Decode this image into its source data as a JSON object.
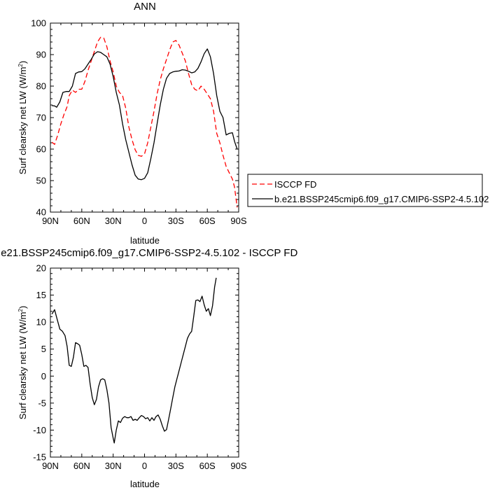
{
  "chart_data": [
    {
      "type": "line",
      "title": "ANN",
      "xlabel": "latitude",
      "ylabel": "Surf clearsky net LW (W/m",
      "ylabel_sup": "2",
      "ylabel_close": ")",
      "xlim": [
        90,
        -90
      ],
      "ylim": [
        40,
        100
      ],
      "x_ticks": [
        90,
        60,
        30,
        0,
        -30,
        -60,
        -90
      ],
      "x_tick_labels": [
        "90N",
        "60N",
        "30N",
        "0",
        "30S",
        "60S",
        "90S"
      ],
      "y_ticks": [
        40,
        50,
        60,
        70,
        80,
        90,
        100
      ],
      "y_tick_labels": [
        "40",
        "50",
        "60",
        "70",
        "80",
        "90",
        "100"
      ],
      "grid": false,
      "legend_position": "right",
      "series": [
        {
          "name": "ISCCP FD",
          "color": "#ff0000",
          "dash": "dashed",
          "points": [
            [
              88.5,
              62.2
            ],
            [
              86,
              61.5
            ],
            [
              83,
              64.5
            ],
            [
              80,
              68
            ],
            [
              77,
              71
            ],
            [
              74,
              73.5
            ],
            [
              72,
              77
            ],
            [
              69,
              78.7
            ],
            [
              66,
              78
            ],
            [
              63,
              79
            ],
            [
              60,
              79
            ],
            [
              57,
              81.5
            ],
            [
              54,
              85
            ],
            [
              51,
              88
            ],
            [
              48,
              91
            ],
            [
              45,
              94
            ],
            [
              42,
              95.5
            ],
            [
              39,
              95.3
            ],
            [
              36,
              92.5
            ],
            [
              33,
              88
            ],
            [
              30,
              84.5
            ],
            [
              27,
              80
            ],
            [
              24,
              78
            ],
            [
              21,
              77
            ],
            [
              18,
              73
            ],
            [
              15,
              67
            ],
            [
              12,
              63
            ],
            [
              9,
              59.8
            ],
            [
              6,
              58
            ],
            [
              3,
              57.7
            ],
            [
              0,
              58.5
            ],
            [
              -3,
              62
            ],
            [
              -6,
              67
            ],
            [
              -9,
              72
            ],
            [
              -12,
              77.5
            ],
            [
              -15,
              82
            ],
            [
              -18,
              85.5
            ],
            [
              -21,
              88.5
            ],
            [
              -24,
              91.5
            ],
            [
              -27,
              94
            ],
            [
              -30,
              94.5
            ],
            [
              -33,
              93
            ],
            [
              -36,
              90.5
            ],
            [
              -39,
              88
            ],
            [
              -42,
              84
            ],
            [
              -45,
              80.5
            ],
            [
              -48,
              79
            ],
            [
              -51,
              78.5
            ],
            [
              -54,
              80
            ],
            [
              -57,
              79
            ],
            [
              -60,
              77.5
            ],
            [
              -63,
              76
            ],
            [
              -66,
              72
            ],
            [
              -69,
              65
            ],
            [
              -72,
              62
            ],
            [
              -75,
              58
            ],
            [
              -78,
              54.5
            ],
            [
              -81,
              52.5
            ],
            [
              -84,
              50.5
            ],
            [
              -86,
              48
            ],
            [
              -88.5,
              41.5
            ]
          ]
        },
        {
          "name": "b.e21.BSSP245cmip6.f09_g17.CMIP6-SSP2-4.5.102",
          "color": "#000000",
          "dash": "solid",
          "points": [
            [
              88.5,
              73.8
            ],
            [
              86,
              73.7
            ],
            [
              84,
              73.3
            ],
            [
              81,
              75
            ],
            [
              78,
              78
            ],
            [
              75,
              78.3
            ],
            [
              72,
              78.3
            ],
            [
              69,
              80
            ],
            [
              66,
              84
            ],
            [
              63,
              84.5
            ],
            [
              60,
              84.6
            ],
            [
              57,
              85.5
            ],
            [
              54,
              87
            ],
            [
              51,
              88.5
            ],
            [
              48,
              90.2
            ],
            [
              45,
              90.9
            ],
            [
              42,
              90.7
            ],
            [
              39,
              90
            ],
            [
              36,
              89.3
            ],
            [
              33,
              87
            ],
            [
              30,
              83
            ],
            [
              27,
              78
            ],
            [
              24,
              74
            ],
            [
              21,
              68
            ],
            [
              18,
              63
            ],
            [
              15,
              59
            ],
            [
              12,
              55
            ],
            [
              9,
              51.7
            ],
            [
              6,
              50.5
            ],
            [
              3,
              50.3
            ],
            [
              0,
              50.7
            ],
            [
              -3,
              52.5
            ],
            [
              -6,
              57
            ],
            [
              -9,
              62
            ],
            [
              -12,
              68
            ],
            [
              -15,
              74
            ],
            [
              -18,
              79
            ],
            [
              -21,
              82.5
            ],
            [
              -24,
              84
            ],
            [
              -27,
              84.5
            ],
            [
              -30,
              84.7
            ],
            [
              -33,
              84.8
            ],
            [
              -36,
              85.2
            ],
            [
              -39,
              85.1
            ],
            [
              -42,
              84.7
            ],
            [
              -45,
              84.2
            ],
            [
              -48,
              84.5
            ],
            [
              -51,
              85.6
            ],
            [
              -54,
              87.7
            ],
            [
              -57,
              90.3
            ],
            [
              -60,
              91.8
            ],
            [
              -63,
              89.3
            ],
            [
              -66,
              84
            ],
            [
              -69,
              77
            ],
            [
              -72,
              72
            ],
            [
              -75,
              70
            ],
            [
              -78,
              64.5
            ],
            [
              -81,
              65
            ],
            [
              -84,
              65.2
            ],
            [
              -86,
              62.5
            ],
            [
              -88.5,
              60
            ]
          ]
        }
      ]
    },
    {
      "type": "line",
      "title": "b.e21.BSSP245cmip6.f09_g17.CMIP6-SSP2-4.5.102 - ISCCP FD",
      "xlabel": "latitude",
      "ylabel": "Surf clearsky net LW (W/m",
      "ylabel_sup": "2",
      "ylabel_close": ")",
      "xlim": [
        90,
        -90
      ],
      "ylim": [
        -15,
        20
      ],
      "x_ticks": [
        90,
        60,
        30,
        0,
        -30,
        -60,
        -90
      ],
      "x_tick_labels": [
        "90N",
        "60N",
        "30N",
        "0",
        "30S",
        "60S",
        "90S"
      ],
      "y_ticks": [
        -15,
        -10,
        -5,
        0,
        5,
        10,
        15,
        20
      ],
      "y_tick_labels": [
        "-15",
        "-10",
        "-5",
        "0",
        "5",
        "10",
        "15",
        "20"
      ],
      "grid": false,
      "series": [
        {
          "color": "#000000",
          "dash": "solid",
          "points": [
            [
              88.5,
              11.5
            ],
            [
              86,
              12.3
            ],
            [
              83.5,
              10.5
            ],
            [
              81,
              8.7
            ],
            [
              78.5,
              8.3
            ],
            [
              76,
              7.5
            ],
            [
              74,
              5.5
            ],
            [
              72,
              2
            ],
            [
              70,
              1.8
            ],
            [
              68,
              3.5
            ],
            [
              66,
              6.2
            ],
            [
              64,
              6
            ],
            [
              62,
              5.7
            ],
            [
              60,
              4
            ],
            [
              58,
              1.8
            ],
            [
              56,
              2
            ],
            [
              54,
              1.6
            ],
            [
              52,
              -1.5
            ],
            [
              50,
              -4
            ],
            [
              48,
              -5.3
            ],
            [
              46,
              -4.3
            ],
            [
              44,
              -2
            ],
            [
              42,
              -0.7
            ],
            [
              40,
              -0.5
            ],
            [
              38,
              -0.7
            ],
            [
              36,
              -2.5
            ],
            [
              34,
              -5
            ],
            [
              32,
              -9.5
            ],
            [
              30,
              -11.5
            ],
            [
              29,
              -12.4
            ],
            [
              27,
              -10
            ],
            [
              25,
              -8.3
            ],
            [
              23,
              -8.6
            ],
            [
              21,
              -7.8
            ],
            [
              19,
              -7.5
            ],
            [
              17,
              -7.7
            ],
            [
              15,
              -7.7
            ],
            [
              13,
              -7.5
            ],
            [
              11,
              -8.2
            ],
            [
              9,
              -8
            ],
            [
              7,
              -8.2
            ],
            [
              5,
              -7.7
            ],
            [
              3,
              -7.3
            ],
            [
              1,
              -7.5
            ],
            [
              -1,
              -7.9
            ],
            [
              -3,
              -7.7
            ],
            [
              -5,
              -8.3
            ],
            [
              -7,
              -7.7
            ],
            [
              -9,
              -8.2
            ],
            [
              -11,
              -7.5
            ],
            [
              -13,
              -7.2
            ],
            [
              -15,
              -8
            ],
            [
              -17,
              -9.2
            ],
            [
              -19,
              -10.2
            ],
            [
              -21,
              -9.9
            ],
            [
              -23,
              -8
            ],
            [
              -25,
              -6
            ],
            [
              -27,
              -4
            ],
            [
              -29,
              -2
            ],
            [
              -31,
              -0.5
            ],
            [
              -33,
              1
            ],
            [
              -35,
              2.5
            ],
            [
              -37,
              4
            ],
            [
              -39,
              5.5
            ],
            [
              -41,
              7
            ],
            [
              -43,
              7.8
            ],
            [
              -45,
              8.3
            ],
            [
              -47,
              11
            ],
            [
              -49,
              14
            ],
            [
              -51,
              14.1
            ],
            [
              -53,
              13.8
            ],
            [
              -55,
              14.8
            ],
            [
              -57,
              13.2
            ],
            [
              -59,
              12
            ],
            [
              -61,
              12.5
            ],
            [
              -63,
              11.2
            ],
            [
              -65,
              13
            ],
            [
              -67,
              16.5
            ],
            [
              -68.5,
              18.2
            ]
          ]
        }
      ]
    }
  ]
}
